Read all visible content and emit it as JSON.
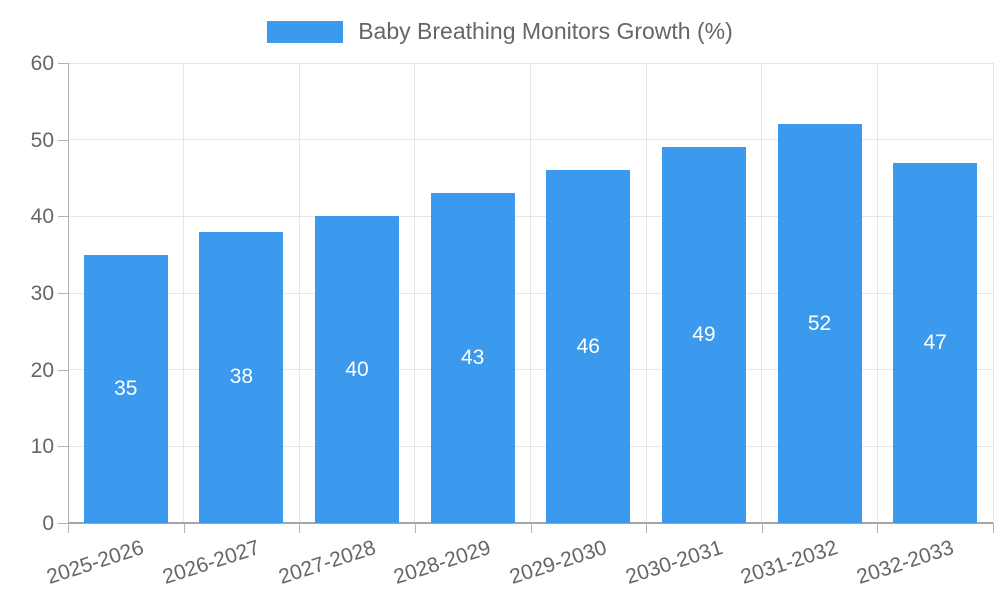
{
  "chart_data": {
    "type": "bar",
    "legend": "Baby Breathing Monitors Growth (%)",
    "legend_position": "top",
    "categories": [
      "2025-2026",
      "2026-2027",
      "2027-2028",
      "2028-2029",
      "2029-2030",
      "2030-2031",
      "2031-2032",
      "2032-2033"
    ],
    "values": [
      35,
      38,
      40,
      43,
      46,
      49,
      52,
      47
    ],
    "yticks": [
      0,
      10,
      20,
      30,
      40,
      50,
      60
    ],
    "ylim": [
      0,
      60
    ],
    "xlabel": "",
    "ylabel": "",
    "grid": true,
    "x_label_rotation_deg": -18,
    "colors": {
      "bar": "#3b9aee",
      "value_label": "#ffffff",
      "tick_text": "#666666",
      "legend_text": "#666666",
      "gridline": "#e6e6e6",
      "axis": "#a6a6a6",
      "background": "#ffffff"
    }
  }
}
